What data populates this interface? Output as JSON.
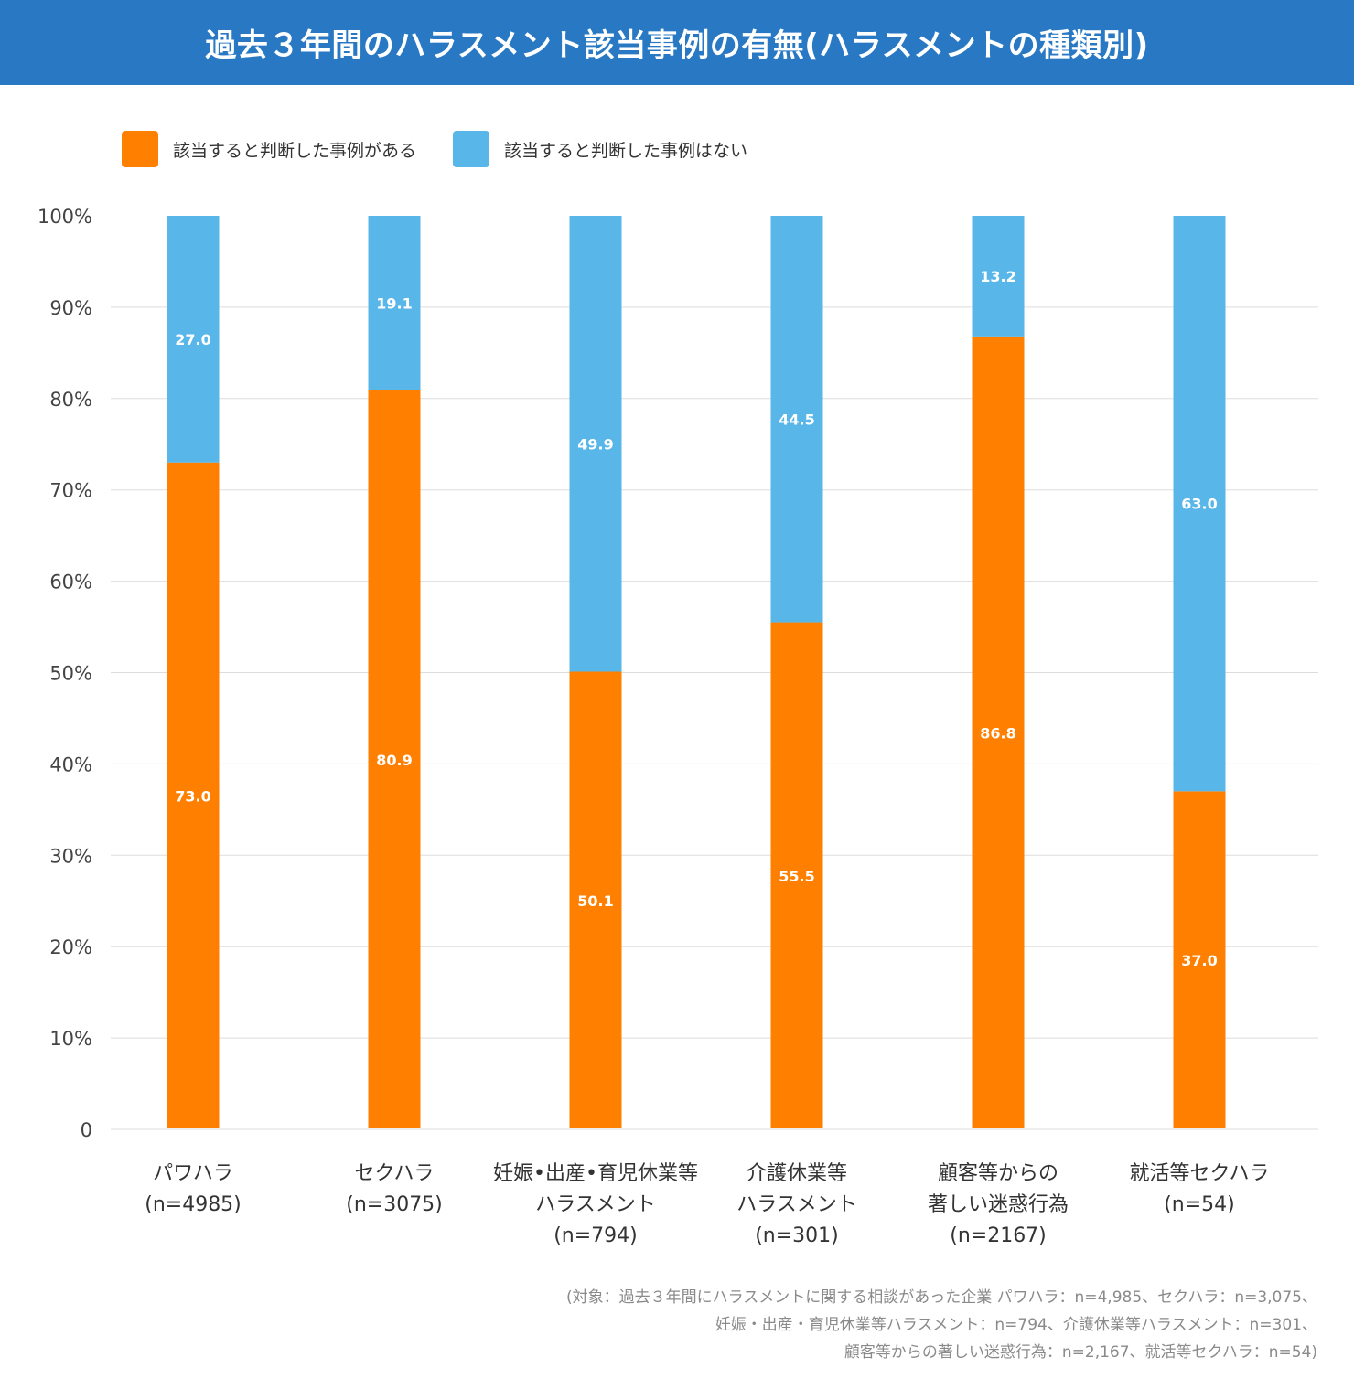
{
  "header": {
    "title": "過去３年間のハラスメント該当事例の有無(ハラスメントの種類別)"
  },
  "colors": {
    "header_bg": "#2878c4",
    "yes": "#ff7f00",
    "no": "#58b6e8",
    "grid": "#dddddd"
  },
  "legend": [
    {
      "label": "該当すると判断した事例がある",
      "color": "#ff7f00"
    },
    {
      "label": "該当すると判断した事例はない",
      "color": "#58b6e8"
    }
  ],
  "chart_data": {
    "type": "bar",
    "stacked": true,
    "title": "過去３年間のハラスメント該当事例の有無(ハラスメントの種類別)",
    "xlabel": "",
    "ylabel": "",
    "ylim": [
      0,
      100
    ],
    "y_ticks": [
      "0",
      "10%",
      "20%",
      "30%",
      "40%",
      "50%",
      "60%",
      "70%",
      "80%",
      "90%",
      "100%"
    ],
    "grid": true,
    "legend_position": "top-left",
    "categories": [
      [
        "パワハラ",
        "(n=4985)"
      ],
      [
        "セクハラ",
        "(n=3075)"
      ],
      [
        "妊娠•出産•育児休業等",
        "ハラスメント",
        "(n=794)"
      ],
      [
        "介護休業等",
        "ハラスメント",
        "(n=301)"
      ],
      [
        "顧客等からの",
        "著しい迷惑行為",
        "(n=2167)"
      ],
      [
        "就活等セクハラ",
        "(n=54)"
      ]
    ],
    "series": [
      {
        "name": "該当すると判断した事例がある",
        "values": [
          73.0,
          80.9,
          50.1,
          55.5,
          86.8,
          37.0
        ]
      },
      {
        "name": "該当すると判断した事例はない",
        "values": [
          27.0,
          19.1,
          49.9,
          44.5,
          13.2,
          63.0
        ]
      }
    ]
  },
  "footnote": [
    "(対象：過去３年間にハラスメントに関する相談があった企業 パワハラ：n=4,985、セクハラ：n=3,075、",
    "妊娠・出産・育児休業等ハラスメント：n=794、介護休業等ハラスメント：n=301、",
    "顧客等からの著しい迷惑行為：n=2,167、就活等セクハラ：n=54)"
  ]
}
